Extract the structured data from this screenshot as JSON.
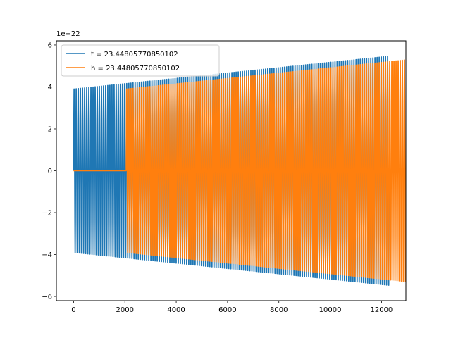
{
  "chart_data": {
    "type": "line",
    "title": "",
    "xlabel": "",
    "ylabel": "",
    "offset_text": "1e−22",
    "xlim": [
      -670,
      12950
    ],
    "ylim": [
      -6.2,
      6.2
    ],
    "x_ticks": [
      0,
      2000,
      4000,
      6000,
      8000,
      10000,
      12000
    ],
    "x_tick_labels": [
      "0",
      "2000",
      "4000",
      "6000",
      "8000",
      "10000",
      "12000"
    ],
    "y_ticks": [
      -6,
      -4,
      -2,
      0,
      2,
      4,
      6
    ],
    "y_tick_labels": [
      "−6",
      "−4",
      "−2",
      "0",
      "2",
      "4",
      "6"
    ],
    "grid": false,
    "legend_position": "upper-left",
    "series": [
      {
        "name": "t = 23.44805770850102",
        "color": "#1f77b4",
        "x_start": 0,
        "x_end": 12300,
        "start_offset": 0,
        "amplitude_start": 4.1,
        "amplitude_end": 5.75,
        "cycles": 150
      },
      {
        "name": "h = 23.44805770850102",
        "color": "#ff7f0e",
        "x_start": 0,
        "x_end": 12300,
        "start_offset": 2050,
        "amplitude_start": 4.1,
        "amplitude_end": 5.75,
        "cycles": 150
      }
    ]
  }
}
